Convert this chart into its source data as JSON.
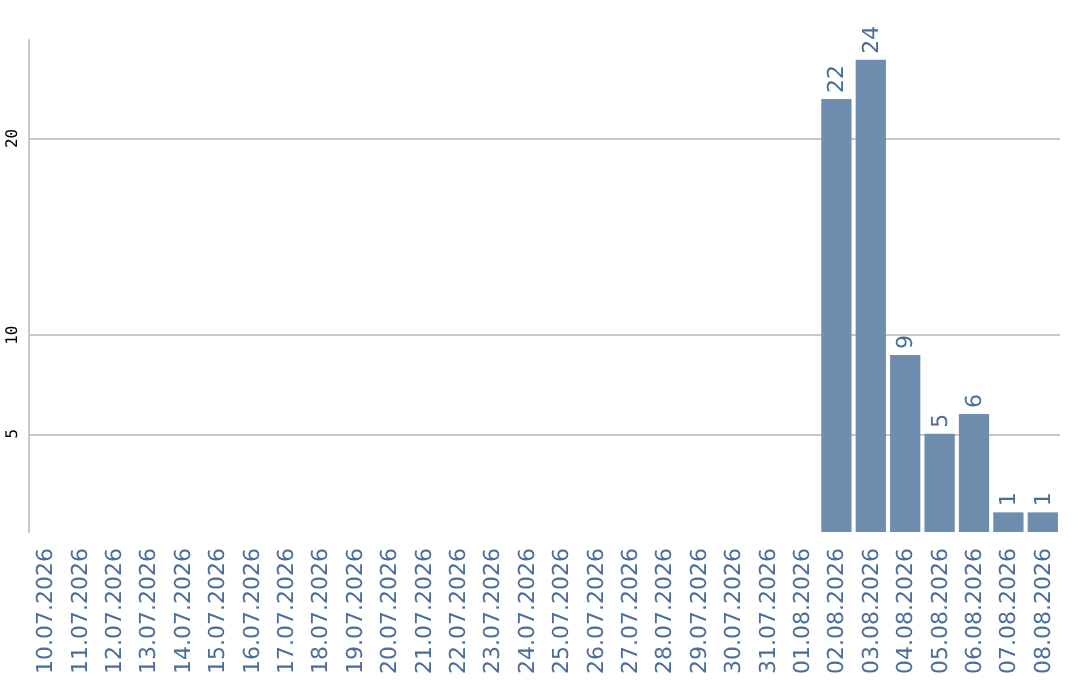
{
  "chart_data": {
    "type": "bar",
    "categories": [
      "10.07.2026",
      "11.07.2026",
      "12.07.2026",
      "13.07.2026",
      "14.07.2026",
      "15.07.2026",
      "16.07.2026",
      "17.07.2026",
      "18.07.2026",
      "19.07.2026",
      "20.07.2026",
      "21.07.2026",
      "22.07.2026",
      "23.07.2026",
      "24.07.2026",
      "25.07.2026",
      "26.07.2026",
      "27.07.2026",
      "28.07.2026",
      "29.07.2026",
      "30.07.2026",
      "31.07.2026",
      "01.08.2026",
      "02.08.2026",
      "03.08.2026",
      "04.08.2026",
      "05.08.2026",
      "06.08.2026",
      "07.08.2026",
      "08.08.2026"
    ],
    "values": [
      0,
      0,
      0,
      0,
      0,
      0,
      0,
      0,
      0,
      0,
      0,
      0,
      0,
      0,
      0,
      0,
      0,
      0,
      0,
      0,
      0,
      0,
      0,
      22,
      24,
      9,
      5,
      6,
      1,
      1
    ],
    "value_labels": [
      null,
      null,
      null,
      null,
      null,
      null,
      null,
      null,
      null,
      null,
      null,
      null,
      null,
      null,
      null,
      null,
      null,
      null,
      null,
      null,
      null,
      null,
      null,
      "22",
      "24",
      "9",
      "5",
      "6",
      "1",
      "1"
    ],
    "color": "#6f8daf",
    "ylim": [
      0,
      25
    ],
    "yticks": [
      5,
      10,
      20
    ],
    "grid": "y"
  }
}
